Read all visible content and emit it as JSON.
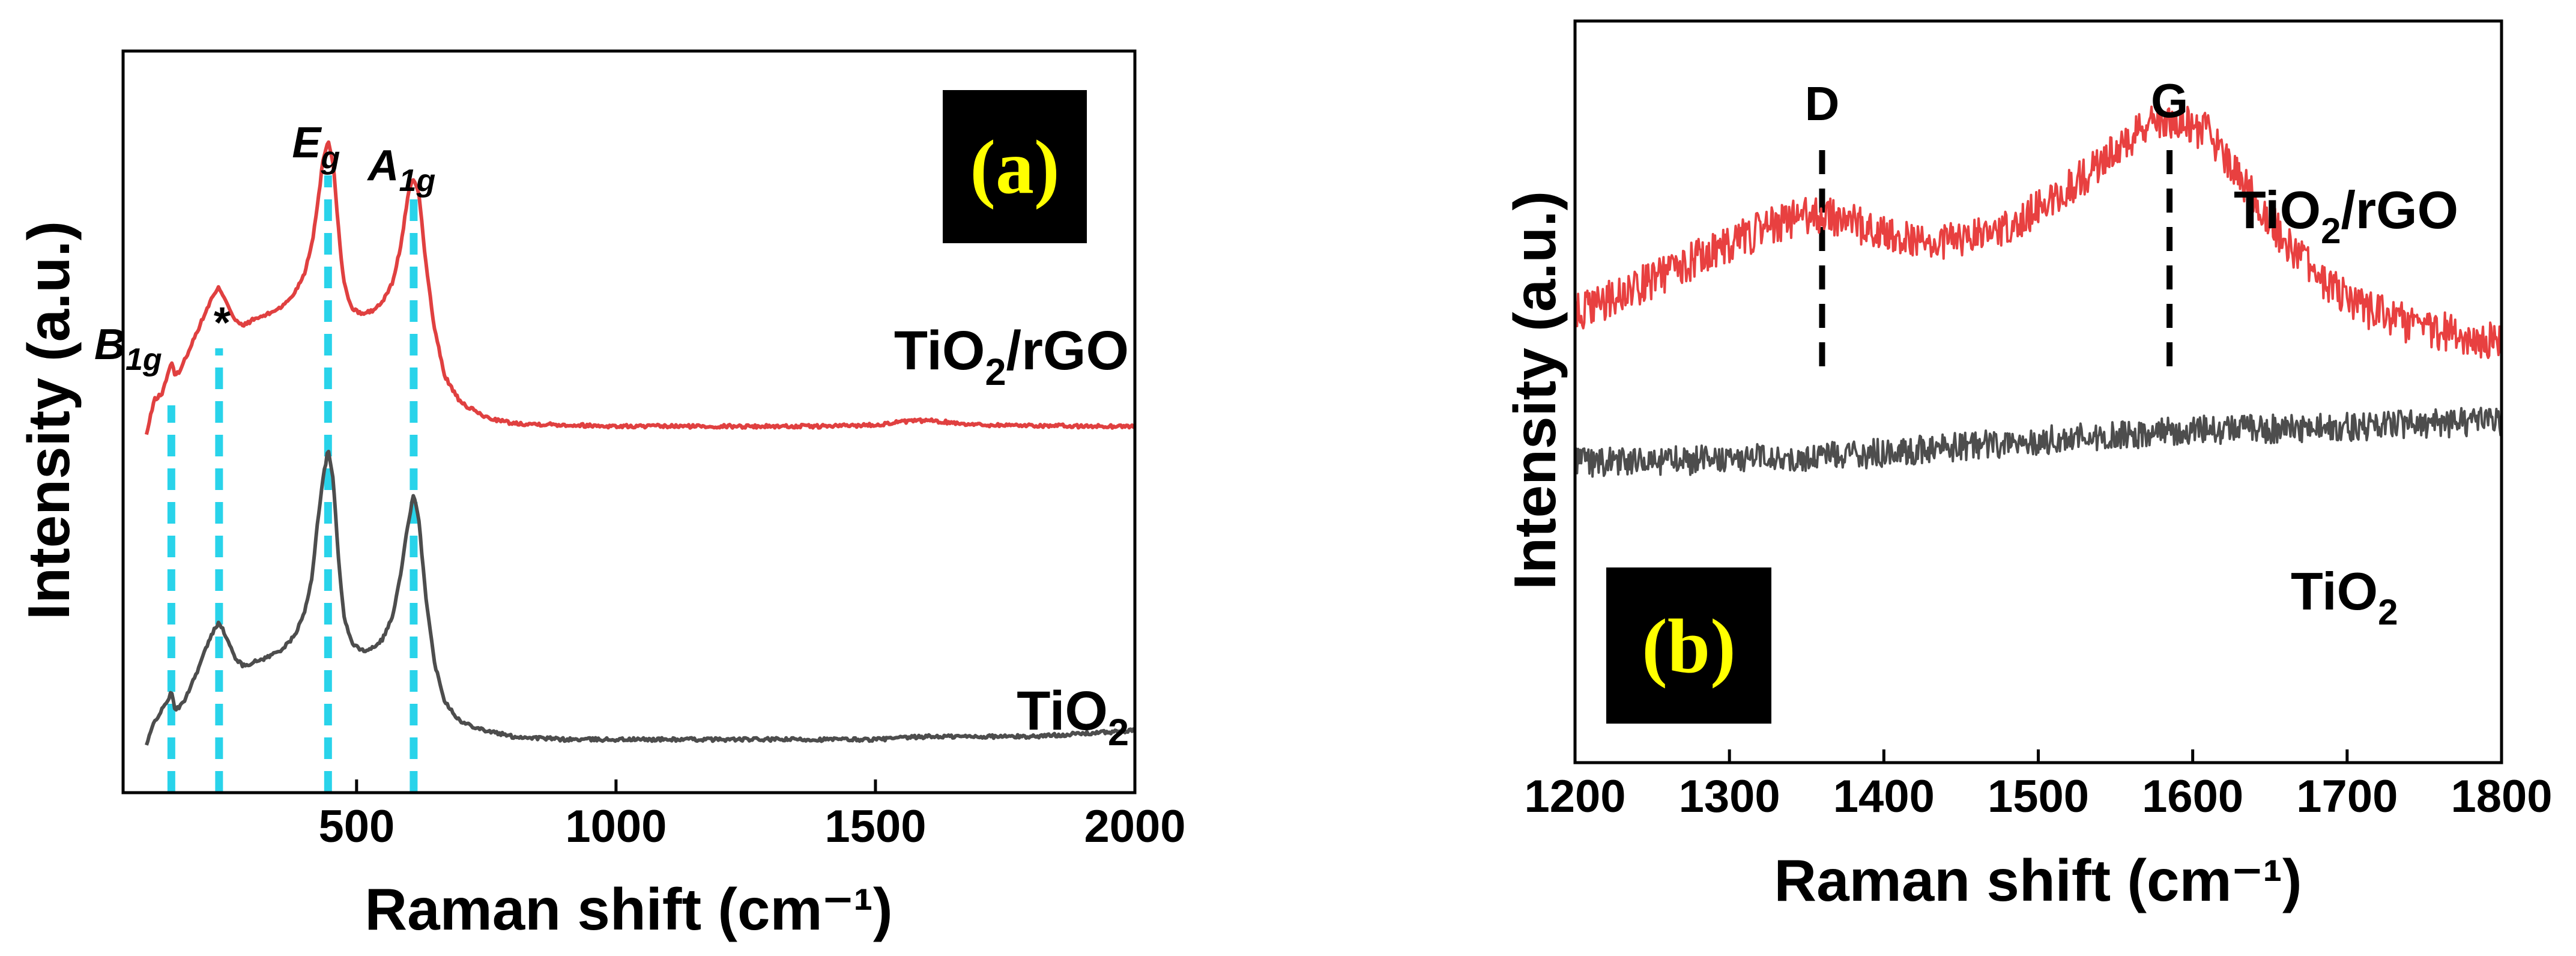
{
  "chart_data": [
    {
      "type": "line",
      "panel_label": "(a)",
      "xlabel": "Raman shift (cm⁻¹)",
      "ylabel": "Intensity (a.u.)",
      "xlim": [
        50,
        2000
      ],
      "xticks": [
        500,
        1000,
        1500,
        2000
      ],
      "xtick_labels": [
        "500",
        "1000",
        "1500",
        "2000"
      ],
      "y_ticks_shown": false,
      "peak_labels": [
        {
          "base": "B",
          "sub": "1g",
          "x": 143
        },
        {
          "base": "*",
          "sub": "",
          "x": 235
        },
        {
          "base": "E",
          "sub": "g",
          "x": 445
        },
        {
          "base": "A",
          "sub": "1g",
          "x": 610
        }
      ],
      "reference_lines": {
        "x": [
          143,
          235,
          445,
          610
        ],
        "color": "#29d3ea",
        "style": "dashed"
      },
      "series": [
        {
          "name": "TiO₂/rGO",
          "name_parts": [
            "TiO",
            "2",
            "/rGO"
          ],
          "color": "#e04040",
          "x": [
            95,
            110,
            125,
            135,
            143,
            150,
            160,
            175,
            190,
            205,
            220,
            235,
            250,
            265,
            280,
            300,
            330,
            360,
            380,
            400,
            415,
            425,
            435,
            445,
            455,
            465,
            475,
            490,
            510,
            530,
            550,
            570,
            585,
            600,
            610,
            620,
            635,
            650,
            670,
            700,
            750,
            800,
            900,
            1000,
            1100,
            1200,
            1300,
            1400,
            1500,
            1550,
            1600,
            1650,
            1700,
            1800,
            1900,
            2000
          ],
          "y": [
            0.0,
            0.12,
            0.14,
            0.2,
            0.25,
            0.2,
            0.22,
            0.28,
            0.34,
            0.4,
            0.46,
            0.5,
            0.45,
            0.39,
            0.37,
            0.39,
            0.41,
            0.44,
            0.48,
            0.55,
            0.66,
            0.78,
            0.93,
            1.0,
            0.92,
            0.7,
            0.52,
            0.43,
            0.41,
            0.42,
            0.45,
            0.52,
            0.64,
            0.82,
            0.87,
            0.82,
            0.56,
            0.36,
            0.2,
            0.11,
            0.06,
            0.04,
            0.035,
            0.03,
            0.03,
            0.03,
            0.03,
            0.03,
            0.035,
            0.045,
            0.05,
            0.042,
            0.035,
            0.033,
            0.03,
            0.03
          ]
        },
        {
          "name": "TiO₂",
          "name_parts": [
            "TiO",
            "2",
            ""
          ],
          "color": "#4d4d4d",
          "x": [
            95,
            110,
            125,
            135,
            143,
            150,
            165,
            180,
            195,
            210,
            225,
            235,
            250,
            265,
            280,
            300,
            330,
            360,
            380,
            400,
            415,
            425,
            435,
            445,
            455,
            465,
            475,
            490,
            510,
            530,
            550,
            570,
            585,
            600,
            610,
            620,
            635,
            650,
            670,
            700,
            750,
            800,
            900,
            1000,
            1100,
            1200,
            1300,
            1400,
            1500,
            1600,
            1700,
            1800,
            1900,
            2000
          ],
          "y": [
            0.0,
            0.08,
            0.12,
            0.15,
            0.18,
            0.12,
            0.14,
            0.2,
            0.26,
            0.33,
            0.39,
            0.42,
            0.36,
            0.3,
            0.27,
            0.28,
            0.3,
            0.33,
            0.37,
            0.45,
            0.58,
            0.76,
            0.9,
            1.0,
            0.9,
            0.64,
            0.44,
            0.35,
            0.32,
            0.33,
            0.36,
            0.44,
            0.58,
            0.76,
            0.85,
            0.76,
            0.48,
            0.28,
            0.15,
            0.08,
            0.05,
            0.03,
            0.02,
            0.02,
            0.02,
            0.02,
            0.02,
            0.02,
            0.02,
            0.03,
            0.03,
            0.03,
            0.04,
            0.05
          ]
        }
      ]
    },
    {
      "type": "line",
      "panel_label": "(b)",
      "xlabel": "Raman shift (cm⁻¹)",
      "ylabel": "Intensity (a.u.)",
      "xlim": [
        1200,
        1800
      ],
      "xticks": [
        1200,
        1300,
        1400,
        1500,
        1600,
        1700,
        1800
      ],
      "xtick_labels": [
        "1200",
        "1300",
        "1400",
        "1500",
        "1600",
        "1700",
        "1800"
      ],
      "y_ticks_shown": false,
      "peak_labels": [
        {
          "base": "D",
          "sub": "",
          "x": 1360
        },
        {
          "base": "G",
          "sub": "",
          "x": 1585
        }
      ],
      "reference_lines": {
        "x": [
          1360,
          1585
        ],
        "color": "#000000",
        "style": "dashed"
      },
      "series": [
        {
          "name": "TiO₂/rGO",
          "name_parts": [
            "TiO",
            "2",
            "/rGO"
          ],
          "color": "#e84040",
          "noise": 0.06,
          "x": [
            1200,
            1230,
            1260,
            1290,
            1320,
            1350,
            1370,
            1400,
            1430,
            1460,
            1490,
            1520,
            1550,
            1570,
            1590,
            1610,
            1630,
            1650,
            1670,
            1690,
            1710,
            1740,
            1770,
            1800
          ],
          "y": [
            0.14,
            0.2,
            0.27,
            0.34,
            0.4,
            0.45,
            0.44,
            0.39,
            0.36,
            0.38,
            0.44,
            0.53,
            0.65,
            0.73,
            0.75,
            0.7,
            0.57,
            0.43,
            0.31,
            0.22,
            0.16,
            0.11,
            0.08,
            0.05
          ]
        },
        {
          "name": "TiO₂",
          "name_parts": [
            "TiO",
            "2",
            ""
          ],
          "color": "#4d4d4d",
          "noise": 0.045,
          "x": [
            1200,
            1300,
            1400,
            1500,
            1600,
            1700,
            1800
          ],
          "y": [
            -0.32,
            -0.31,
            -0.29,
            -0.25,
            -0.22,
            -0.21,
            -0.19
          ]
        }
      ]
    }
  ]
}
